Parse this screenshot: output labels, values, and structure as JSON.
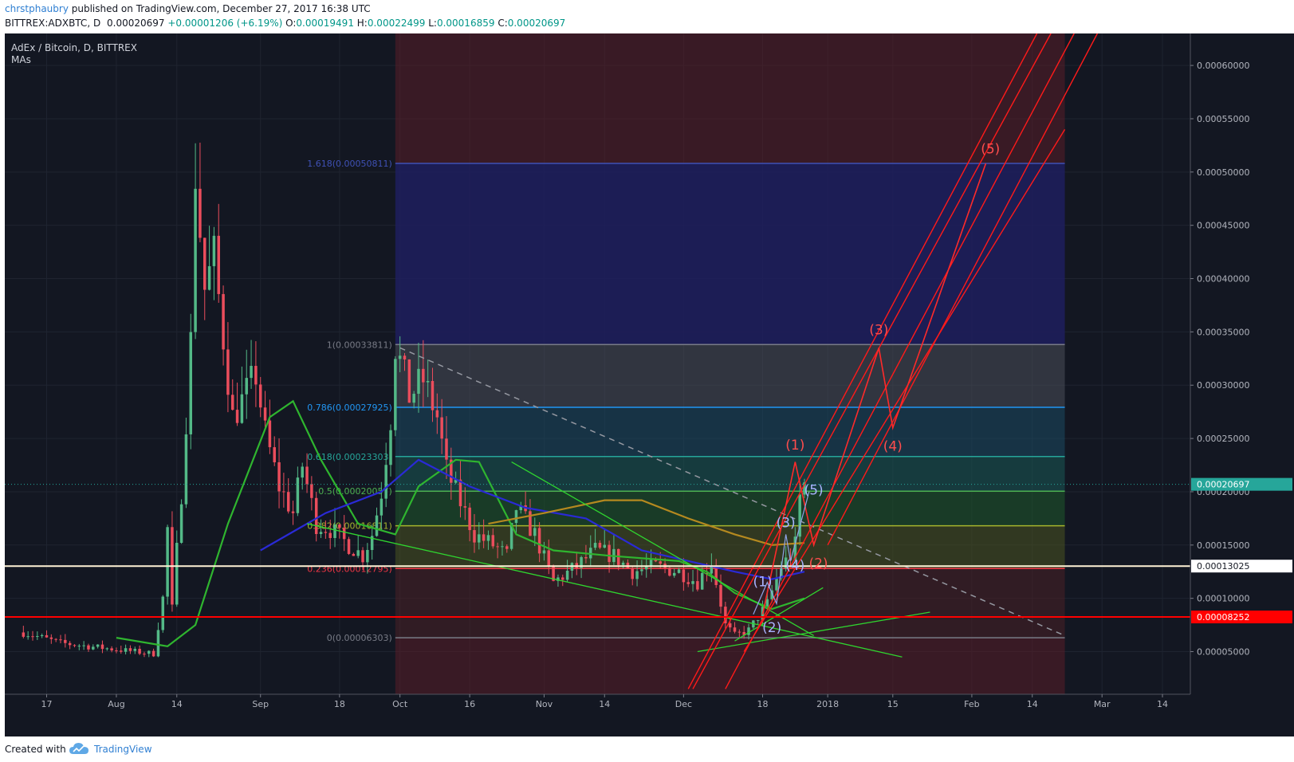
{
  "header": {
    "author": "chrstphaubry",
    "published": " published on TradingView.com, December 27, 2017 16:38 UTC",
    "symbol": "BITTREX:ADXBTC, D",
    "last": "0.00020697",
    "change": "+0.00001206 (+6.19%)",
    "o_label": "O:",
    "o": "0.00019491",
    "h_label": "H:",
    "h": "0.00022499",
    "l_label": "L:",
    "l": "0.00016859",
    "c_label": "C:",
    "c": "0.00020697"
  },
  "legend": {
    "title": "AdEx / Bitcoin, D, BITTREX",
    "indicator": "MAs"
  },
  "footer": {
    "created": "Created with",
    "brand": "TradingView",
    "logo_icon": "tradingview-cloud-icon"
  },
  "colors": {
    "background": "#131722",
    "up": "#53b987",
    "down": "#eb4d5c",
    "fib_red_zone": "#5a1e28",
    "fib_blue_zone": "#1f1f5e",
    "price_label": "#26a69a",
    "support_red": "#ff0000"
  },
  "chart_data": {
    "type": "candlestick",
    "title": "AdEx / Bitcoin, D, BITTREX",
    "ylim": [
      1e-05,
      0.00063
    ],
    "yticks": [
      "0.00005000",
      "0.00010000",
      "0.00015000",
      "0.00020000",
      "0.00025000",
      "0.00030000",
      "0.00035000",
      "0.00040000",
      "0.00045000",
      "0.00050000",
      "0.00055000",
      "0.00060000"
    ],
    "xtick_labels": [
      {
        "label": "17",
        "date": "2017-07-17"
      },
      {
        "label": "Aug",
        "date": "2017-08-01"
      },
      {
        "label": "14",
        "date": "2017-08-14"
      },
      {
        "label": "Sep",
        "date": "2017-09-01"
      },
      {
        "label": "18",
        "date": "2017-09-18"
      },
      {
        "label": "Oct",
        "date": "2017-10-01"
      },
      {
        "label": "16",
        "date": "2017-10-16"
      },
      {
        "label": "Nov",
        "date": "2017-11-01"
      },
      {
        "label": "14",
        "date": "2017-11-14"
      },
      {
        "label": "Dec",
        "date": "2017-12-01"
      },
      {
        "label": "18",
        "date": "2017-12-18"
      },
      {
        "label": "2018",
        "date": "2018-01-01"
      },
      {
        "label": "15",
        "date": "2018-01-15"
      },
      {
        "label": "Feb",
        "date": "2018-02-01"
      },
      {
        "label": "14",
        "date": "2018-02-14"
      },
      {
        "label": "Mar",
        "date": "2018-03-01"
      },
      {
        "label": "14",
        "date": "2018-03-14"
      }
    ],
    "close_path": [
      [
        "2017-07-12",
        6.8e-05
      ],
      [
        "2017-07-20",
        5.8e-05
      ],
      [
        "2017-07-28",
        5.4e-05
      ],
      [
        "2017-08-05",
        5e-05
      ],
      [
        "2017-08-09",
        4.8e-05
      ],
      [
        "2017-08-11",
        0.0001
      ],
      [
        "2017-08-12",
        0.000165
      ],
      [
        "2017-08-13",
        9e-05
      ],
      [
        "2017-08-15",
        0.0002
      ],
      [
        "2017-08-17",
        0.00034
      ],
      [
        "2017-08-18",
        0.0005
      ],
      [
        "2017-08-20",
        0.00039
      ],
      [
        "2017-08-22",
        0.00042
      ],
      [
        "2017-08-24",
        0.000345
      ],
      [
        "2017-08-26",
        0.00027
      ],
      [
        "2017-08-28",
        0.000285
      ],
      [
        "2017-08-31",
        0.00031
      ],
      [
        "2017-09-02",
        0.000255
      ],
      [
        "2017-09-05",
        0.000205
      ],
      [
        "2017-09-08",
        0.00018
      ],
      [
        "2017-09-10",
        0.000225
      ],
      [
        "2017-09-13",
        0.00017
      ],
      [
        "2017-09-16",
        0.000165
      ],
      [
        "2017-09-20",
        0.00015
      ],
      [
        "2017-09-23",
        0.00014
      ],
      [
        "2017-09-25",
        0.00016
      ],
      [
        "2017-09-27",
        0.0002
      ],
      [
        "2017-09-29",
        0.00027
      ],
      [
        "2017-09-30",
        0.000338
      ],
      [
        "2017-10-03",
        0.00029
      ],
      [
        "2017-10-06",
        0.000305
      ],
      [
        "2017-10-09",
        0.00027
      ],
      [
        "2017-10-11",
        0.00022
      ],
      [
        "2017-10-14",
        0.00019
      ],
      [
        "2017-10-17",
        0.00016
      ],
      [
        "2017-10-21",
        0.00015
      ],
      [
        "2017-10-24",
        0.00014
      ],
      [
        "2017-10-26",
        0.000185
      ],
      [
        "2017-10-30",
        0.00016
      ],
      [
        "2017-11-03",
        0.000115
      ],
      [
        "2017-11-08",
        0.00013
      ],
      [
        "2017-11-12",
        0.000145
      ],
      [
        "2017-11-16",
        0.00014
      ],
      [
        "2017-11-20",
        0.000125
      ],
      [
        "2017-11-25",
        0.00013
      ],
      [
        "2017-11-30",
        0.000125
      ],
      [
        "2017-12-04",
        0.000115
      ],
      [
        "2017-12-07",
        0.000135
      ],
      [
        "2017-12-10",
        7.5e-05
      ],
      [
        "2017-12-12",
        6.5e-05
      ],
      [
        "2017-12-15",
        7e-05
      ],
      [
        "2017-12-19",
        9.5e-05
      ],
      [
        "2017-12-22",
        0.00013
      ],
      [
        "2017-12-24",
        0.00014
      ],
      [
        "2017-12-25",
        0.00015
      ],
      [
        "2017-12-26",
        0.000195
      ],
      [
        "2017-12-27",
        0.000207
      ]
    ],
    "moving_averages": [
      {
        "color": "#2fb52f",
        "points": [
          [
            "2017-08-01",
            6.3e-05
          ],
          [
            "2017-08-12",
            5.5e-05
          ],
          [
            "2017-08-18",
            7.5e-05
          ],
          [
            "2017-08-25",
            0.00017
          ],
          [
            "2017-09-03",
            0.00027
          ],
          [
            "2017-09-08",
            0.000285
          ],
          [
            "2017-09-14",
            0.00023
          ],
          [
            "2017-09-22",
            0.00017
          ],
          [
            "2017-09-30",
            0.00016
          ],
          [
            "2017-10-05",
            0.000205
          ],
          [
            "2017-10-13",
            0.00023
          ],
          [
            "2017-10-18",
            0.000228
          ],
          [
            "2017-10-26",
            0.00016
          ],
          [
            "2017-11-03",
            0.000145
          ],
          [
            "2017-11-15",
            0.00014
          ],
          [
            "2017-11-30",
            0.000135
          ],
          [
            "2017-12-06",
            0.000125
          ],
          [
            "2017-12-12",
            0.000105
          ],
          [
            "2017-12-20",
            9e-05
          ],
          [
            "2017-12-27",
            0.0001
          ]
        ]
      },
      {
        "color": "#2a2ad6",
        "points": [
          [
            "2017-09-01",
            0.000145
          ],
          [
            "2017-09-15",
            0.00018
          ],
          [
            "2017-09-27",
            0.0002
          ],
          [
            "2017-10-05",
            0.00023
          ],
          [
            "2017-10-16",
            0.000205
          ],
          [
            "2017-10-28",
            0.000185
          ],
          [
            "2017-11-10",
            0.000175
          ],
          [
            "2017-11-22",
            0.000145
          ],
          [
            "2017-12-02",
            0.000135
          ],
          [
            "2017-12-12",
            0.000125
          ],
          [
            "2017-12-20",
            0.000118
          ],
          [
            "2017-12-27",
            0.000125
          ]
        ]
      },
      {
        "color": "#b5891f",
        "points": [
          [
            "2017-10-20",
            0.00017
          ],
          [
            "2017-11-01",
            0.00018
          ],
          [
            "2017-11-14",
            0.000192
          ],
          [
            "2017-11-22",
            0.000192
          ],
          [
            "2017-12-02",
            0.000175
          ],
          [
            "2017-12-12",
            0.00016
          ],
          [
            "2017-12-20",
            0.00015
          ],
          [
            "2017-12-27",
            0.000152
          ]
        ]
      }
    ],
    "fibonacci": [
      {
        "ratio": 0,
        "price": 6.303e-05,
        "label": "0(0.00006303)",
        "color": "#787b86"
      },
      {
        "ratio": 0.236,
        "price": 0.00012795,
        "label": "0.236(0.00012795)",
        "color": "#f23645"
      },
      {
        "ratio": 0.382,
        "price": 0.00016811,
        "label": "0.382(0.00016811)",
        "color": "#a5b42c"
      },
      {
        "ratio": 0.5,
        "price": 0.00020057,
        "label": "0.5(0.00020057)",
        "color": "#4caf50"
      },
      {
        "ratio": 0.618,
        "price": 0.00023303,
        "label": "0.618(0.00023303)",
        "color": "#26a69a"
      },
      {
        "ratio": 0.786,
        "price": 0.00027925,
        "label": "0.786(0.00027925)",
        "color": "#2196f3"
      },
      {
        "ratio": 1,
        "price": 0.00033811,
        "label": "1(0.00033811)",
        "color": "#787b86"
      },
      {
        "ratio": 1.618,
        "price": 0.00050811,
        "label": "1.618(0.00050811)",
        "color": "#3f51b5"
      }
    ],
    "horizontal_lines": [
      {
        "price": 0.00013025,
        "label": "0.00013025",
        "color": "#fff3d6"
      },
      {
        "price": 8.252e-05,
        "label": "0.00008252",
        "color": "#ff0000"
      }
    ],
    "current_price": {
      "price": 0.00020697,
      "label": "0.00020697"
    },
    "trendlines": [
      {
        "color": "#2fd52f",
        "points": [
          [
            "2017-10-25",
            0.000228
          ],
          [
            "2017-12-29",
            6.5e-05
          ]
        ]
      },
      {
        "color": "#2fd52f",
        "points": [
          [
            "2017-09-11",
            0.00017
          ],
          [
            "2018-01-17",
            4.5e-05
          ]
        ]
      },
      {
        "color": "#2fd52f",
        "points": [
          [
            "2017-12-04",
            5e-05
          ],
          [
            "2018-01-23",
            8.7e-05
          ]
        ]
      },
      {
        "color": "#2fd52f",
        "points": [
          [
            "2017-12-12",
            6e-05
          ],
          [
            "2017-12-31",
            0.00011
          ]
        ]
      },
      {
        "color": "#9598a1",
        "dashed": true,
        "points": [
          [
            "2017-10-01",
            0.000335
          ],
          [
            "2018-02-21",
            6.5e-05
          ]
        ]
      }
    ],
    "channel_lines": [
      {
        "color": "#ff1a1a",
        "points": [
          [
            "2017-12-02",
            1.5e-05
          ],
          [
            "2018-02-15",
            0.00063
          ]
        ]
      },
      {
        "color": "#ff1a1a",
        "points": [
          [
            "2017-12-03",
            1.5e-05
          ],
          [
            "2018-02-18",
            0.00063
          ]
        ]
      },
      {
        "color": "#ff1a1a",
        "points": [
          [
            "2017-12-10",
            1.5e-05
          ],
          [
            "2018-02-23",
            0.00063
          ]
        ]
      },
      {
        "color": "#ff1a1a",
        "points": [
          [
            "2017-12-14",
            5e-05
          ],
          [
            "2018-02-21",
            0.00054
          ]
        ]
      },
      {
        "color": "#ff1a1a",
        "points": [
          [
            "2018-02-28",
            0.00063
          ],
          [
            "2018-01-01",
            0.00015
          ]
        ]
      }
    ],
    "wave_path_red": [
      [
        "2017-12-18",
        8.5e-05
      ],
      [
        "2017-12-25",
        0.000228
      ],
      [
        "2017-12-29",
        0.00015
      ],
      [
        "2018-01-12",
        0.000335
      ],
      [
        "2018-01-15",
        0.00026
      ],
      [
        "2018-02-04",
        0.000508
      ]
    ],
    "wave_path_blue": [
      [
        "2017-12-16",
        8.5e-05
      ],
      [
        "2017-12-19",
        0.000115
      ],
      [
        "2017-12-21",
        9.5e-05
      ],
      [
        "2017-12-23",
        0.00016
      ],
      [
        "2017-12-24",
        0.000135
      ],
      [
        "2017-12-28",
        0.0002
      ]
    ],
    "wave_labels": [
      {
        "text": "(1)",
        "date": "2017-12-25",
        "price": 0.000244,
        "color": "#ff4d4d"
      },
      {
        "text": "(2)",
        "date": "2017-12-30",
        "price": 0.000133,
        "color": "#ff4d4d"
      },
      {
        "text": "(3)",
        "date": "2018-01-12",
        "price": 0.000352,
        "color": "#ff4d4d"
      },
      {
        "text": "(4)",
        "date": "2018-01-15",
        "price": 0.000243,
        "color": "#ff4d4d"
      },
      {
        "text": "(5)",
        "date": "2018-02-05",
        "price": 0.000522,
        "color": "#ff4d4d"
      },
      {
        "text": "(1)",
        "date": "2017-12-18",
        "price": 0.000116,
        "color": "#a9b3ff"
      },
      {
        "text": "(2)",
        "date": "2017-12-20",
        "price": 7.3e-05,
        "color": "#a9b3ff"
      },
      {
        "text": "(3)",
        "date": "2017-12-23",
        "price": 0.000171,
        "color": "#a9b3ff"
      },
      {
        "text": "(4)",
        "date": "2017-12-25",
        "price": 0.000131,
        "color": "#a9b3ff"
      },
      {
        "text": "(5)",
        "date": "2017-12-29",
        "price": 0.000202,
        "color": "#a9b3ff"
      }
    ],
    "fib_zone": {
      "start": "2017-09-30",
      "end": "2018-02-21",
      "top": 0.00063
    }
  }
}
